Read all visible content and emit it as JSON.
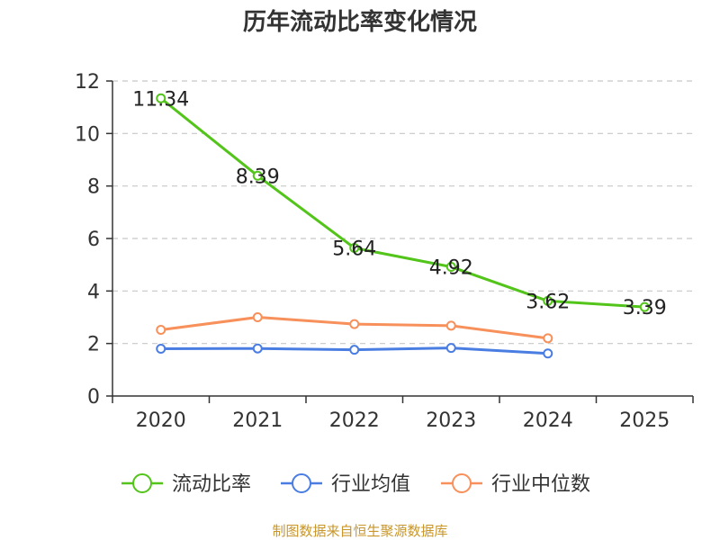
{
  "chart_data": {
    "type": "line",
    "title": "历年流动比率变化情况",
    "categories": [
      "2020",
      "2021",
      "2022",
      "2023",
      "2024",
      "2025"
    ],
    "ylim": [
      0,
      12
    ],
    "yticks": [
      0,
      2,
      4,
      6,
      8,
      10,
      12
    ],
    "grid": "horizontal dashed",
    "legend_position": "bottom",
    "series": [
      {
        "name": "流动比率",
        "color": "#52c41a",
        "values": [
          11.34,
          8.39,
          5.64,
          4.92,
          3.62,
          3.39
        ],
        "labels": [
          "11.34",
          "8.39",
          "5.64",
          "4.92",
          "3.62",
          "3.39"
        ],
        "show_labels": true
      },
      {
        "name": "行业均值",
        "color": "#4a7de2",
        "values": [
          1.8,
          1.81,
          1.76,
          1.83,
          1.62,
          null
        ],
        "show_labels": false
      },
      {
        "name": "行业中位数",
        "color": "#f7905a",
        "values": [
          2.52,
          3.0,
          2.74,
          2.68,
          2.2,
          null
        ],
        "show_labels": false
      }
    ],
    "source": "制图数据来自恒生聚源数据库"
  }
}
